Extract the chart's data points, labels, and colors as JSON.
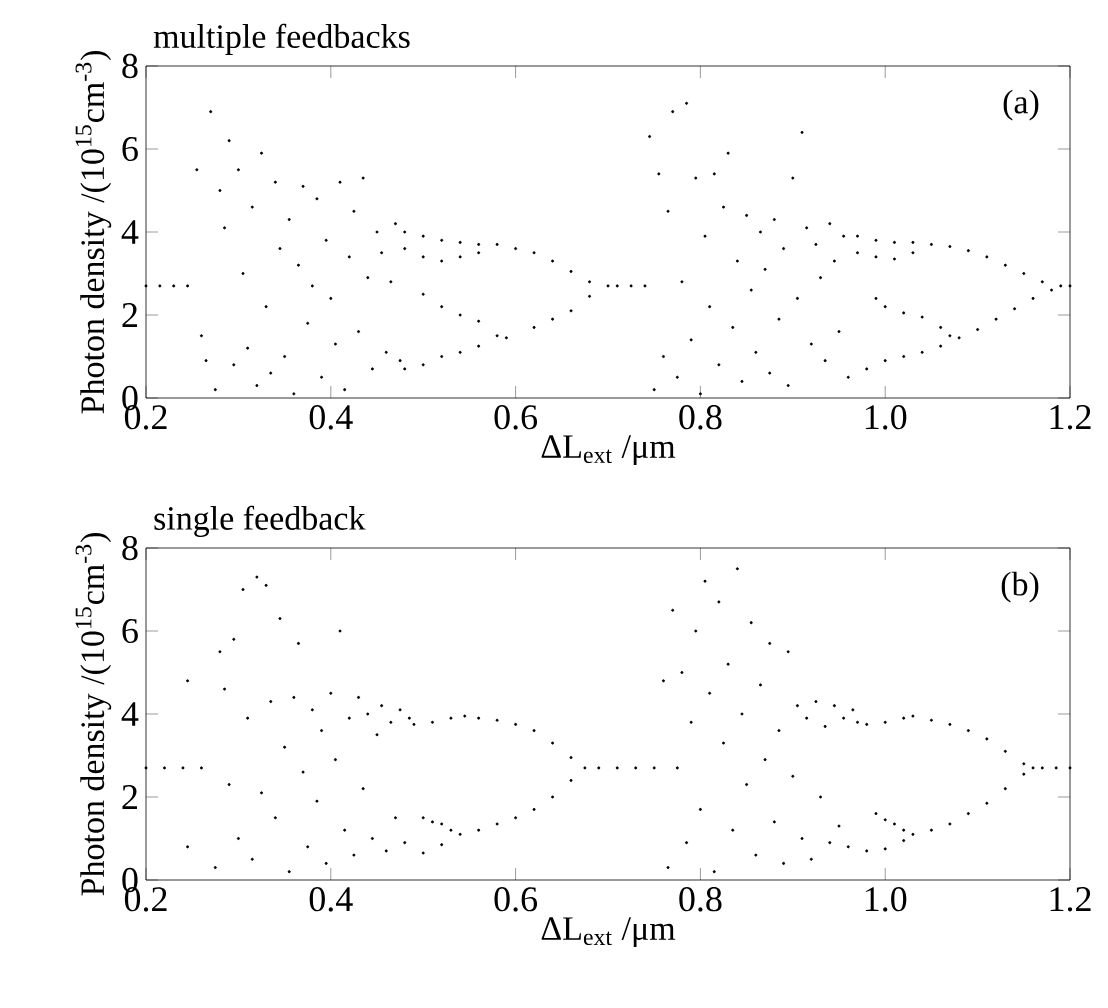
{
  "chart_data": [
    {
      "type": "scatter",
      "title": "multiple feedbacks",
      "annotations": [
        "(a)"
      ],
      "xlabel": "ΔL$_{ext}$ /μm",
      "ylabel": "Photon density /(10$^{15}$cm$^{-3}$)",
      "xlim": [
        0.2,
        1.2
      ],
      "ylim": [
        0,
        8
      ],
      "xticks": [
        0.2,
        0.4,
        0.6,
        0.8,
        {
          "value": 1,
          "label": "1.0"
        },
        1.2
      ],
      "yticks": [
        0,
        2,
        4,
        6,
        8
      ],
      "marker": "circle",
      "series": [
        {
          "color": "#000000",
          "x": [
            0.2,
            0.215,
            0.23,
            0.245,
            0.255,
            0.26,
            0.265,
            0.27,
            0.275,
            0.28,
            0.285,
            0.29,
            0.295,
            0.3,
            0.305,
            0.31,
            0.315,
            0.32,
            0.325,
            0.33,
            0.335,
            0.34,
            0.345,
            0.35,
            0.355,
            0.36,
            0.365,
            0.37,
            0.375,
            0.38,
            0.385,
            0.39,
            0.395,
            0.4,
            0.405,
            0.41,
            0.415,
            0.42,
            0.425,
            0.43,
            0.435,
            0.44,
            0.445,
            0.45,
            0.455,
            0.46,
            0.465,
            0.47,
            0.475,
            0.48,
            0.5,
            0.52,
            0.54,
            0.56,
            0.58,
            0.6,
            0.62,
            0.64,
            0.66,
            0.68,
            0.7,
            0.48,
            0.5,
            0.52,
            0.54,
            0.56,
            0.5,
            0.52,
            0.54,
            0.56,
            0.58,
            0.48,
            0.5,
            0.52,
            0.54,
            0.56,
            0.59,
            0.62,
            0.64,
            0.66,
            0.68,
            0.71,
            0.725,
            0.74,
            0.745,
            0.75,
            0.755,
            0.76,
            0.765,
            0.77,
            0.775,
            0.78,
            0.785,
            0.79,
            0.795,
            0.8,
            0.805,
            0.81,
            0.815,
            0.82,
            0.825,
            0.83,
            0.835,
            0.84,
            0.845,
            0.85,
            0.855,
            0.86,
            0.865,
            0.87,
            0.875,
            0.88,
            0.885,
            0.89,
            0.895,
            0.9,
            0.905,
            0.91,
            0.915,
            0.92,
            0.925,
            0.93,
            0.935,
            0.94,
            0.945,
            0.95,
            0.955,
            0.97,
            0.99,
            1.01,
            1.03,
            1.05,
            1.07,
            1.09,
            1.11,
            1.13,
            1.15,
            1.17,
            1.19,
            0.97,
            0.99,
            1.01,
            1.03,
            0.99,
            1.0,
            1.02,
            1.04,
            1.06,
            1.07,
            0.96,
            0.98,
            1.0,
            1.02,
            1.04,
            1.06,
            1.08,
            1.1,
            1.12,
            1.14,
            1.16,
            1.18,
            1.2
          ],
          "values": [
            2.7,
            2.7,
            2.7,
            2.7,
            5.5,
            1.5,
            0.9,
            6.9,
            0.2,
            5.0,
            4.1,
            6.2,
            0.8,
            5.5,
            3.0,
            1.2,
            4.6,
            0.3,
            5.9,
            2.2,
            0.6,
            5.2,
            3.6,
            1.0,
            4.3,
            0.1,
            3.2,
            5.1,
            1.8,
            2.7,
            4.8,
            0.5,
            3.8,
            2.4,
            1.3,
            5.2,
            0.2,
            3.4,
            4.5,
            1.6,
            5.3,
            2.9,
            0.7,
            4.0,
            3.5,
            1.1,
            2.8,
            4.2,
            0.9,
            4.0,
            3.9,
            3.8,
            3.75,
            3.7,
            3.7,
            3.6,
            3.5,
            3.3,
            3.05,
            2.8,
            2.7,
            3.6,
            3.4,
            3.3,
            3.4,
            3.5,
            2.5,
            2.2,
            2.0,
            1.85,
            1.5,
            0.7,
            0.8,
            1.0,
            1.1,
            1.25,
            1.45,
            1.7,
            1.9,
            2.1,
            2.45,
            2.7,
            2.7,
            2.7,
            6.3,
            0.2,
            5.4,
            1.0,
            4.5,
            6.9,
            0.5,
            2.8,
            7.1,
            1.4,
            5.3,
            0.1,
            3.9,
            2.2,
            5.4,
            0.8,
            4.6,
            5.9,
            1.7,
            3.3,
            0.4,
            4.4,
            2.6,
            1.1,
            4.0,
            3.1,
            0.6,
            4.3,
            1.9,
            3.6,
            0.3,
            5.3,
            2.4,
            6.4,
            4.1,
            1.3,
            3.7,
            2.9,
            0.9,
            4.2,
            3.3,
            1.6,
            3.9,
            3.9,
            3.8,
            3.75,
            3.75,
            3.7,
            3.65,
            3.55,
            3.4,
            3.2,
            3.0,
            2.8,
            2.7,
            3.5,
            3.4,
            3.35,
            3.5,
            2.4,
            2.2,
            2.05,
            1.95,
            1.7,
            1.5,
            0.5,
            0.7,
            0.9,
            1.0,
            1.1,
            1.25,
            1.45,
            1.65,
            1.9,
            2.15,
            2.4,
            2.6,
            2.7
          ]
        }
      ]
    },
    {
      "type": "scatter",
      "title": "single feedback",
      "annotations": [
        "(b)"
      ],
      "xlabel": "ΔL$_{ext}$ /μm",
      "ylabel": "Photon density /(10$^{15}$cm$^{-3}$)",
      "xlim": [
        0.2,
        1.2
      ],
      "ylim": [
        0,
        8
      ],
      "xticks": [
        0.2,
        0.4,
        0.6,
        0.8,
        {
          "value": 1,
          "label": "1.0"
        },
        1.2
      ],
      "yticks": [
        0,
        2,
        4,
        6,
        8
      ],
      "marker": "circle",
      "series": [
        {
          "color": "#000000",
          "x": [
            0.2,
            0.22,
            0.24,
            0.26,
            0.245,
            0.245,
            0.275,
            0.28,
            0.285,
            0.29,
            0.295,
            0.3,
            0.305,
            0.31,
            0.315,
            0.32,
            0.325,
            0.33,
            0.335,
            0.34,
            0.345,
            0.35,
            0.355,
            0.36,
            0.365,
            0.37,
            0.375,
            0.38,
            0.385,
            0.39,
            0.395,
            0.4,
            0.405,
            0.41,
            0.415,
            0.42,
            0.425,
            0.43,
            0.435,
            0.44,
            0.445,
            0.45,
            0.455,
            0.46,
            0.465,
            0.47,
            0.475,
            0.48,
            0.485,
            0.49,
            0.51,
            0.53,
            0.545,
            0.56,
            0.58,
            0.6,
            0.62,
            0.64,
            0.66,
            0.675,
            0.5,
            0.52,
            0.54,
            0.56,
            0.58,
            0.6,
            0.62,
            0.64,
            0.66,
            0.5,
            0.51,
            0.52,
            0.53,
            0.69,
            0.71,
            0.73,
            0.75,
            0.76,
            0.765,
            0.77,
            0.775,
            0.78,
            0.785,
            0.79,
            0.795,
            0.8,
            0.805,
            0.81,
            0.815,
            0.82,
            0.825,
            0.83,
            0.835,
            0.84,
            0.845,
            0.85,
            0.855,
            0.86,
            0.865,
            0.87,
            0.875,
            0.88,
            0.885,
            0.89,
            0.895,
            0.9,
            0.905,
            0.91,
            0.915,
            0.92,
            0.925,
            0.93,
            0.935,
            0.94,
            0.945,
            0.95,
            0.955,
            0.96,
            0.965,
            0.97,
            0.98,
            1.0,
            1.02,
            1.03,
            1.05,
            1.07,
            1.09,
            1.11,
            1.13,
            1.15,
            1.16,
            0.98,
            1.0,
            1.02,
            1.03,
            1.05,
            1.07,
            1.09,
            1.11,
            1.13,
            1.15,
            0.99,
            1.0,
            1.01,
            1.02,
            1.17,
            1.185,
            1.2
          ],
          "values": [
            2.7,
            2.7,
            2.7,
            2.7,
            4.8,
            0.8,
            0.3,
            5.5,
            4.6,
            2.3,
            5.8,
            1.0,
            7.0,
            3.9,
            0.5,
            7.3,
            2.1,
            7.1,
            4.3,
            1.5,
            6.3,
            3.2,
            0.2,
            4.4,
            5.7,
            2.6,
            0.8,
            4.1,
            1.9,
            3.6,
            0.4,
            4.5,
            2.9,
            6.0,
            1.2,
            3.9,
            0.6,
            4.4,
            2.2,
            4.0,
            1.0,
            3.5,
            4.2,
            0.7,
            3.8,
            1.5,
            4.1,
            0.9,
            3.9,
            3.75,
            3.8,
            3.9,
            3.95,
            3.9,
            3.85,
            3.75,
            3.6,
            3.3,
            2.95,
            2.7,
            0.65,
            0.85,
            1.1,
            1.2,
            1.35,
            1.5,
            1.7,
            2.0,
            2.4,
            1.5,
            1.4,
            1.35,
            1.2,
            2.7,
            2.7,
            2.7,
            2.7,
            4.8,
            0.3,
            6.5,
            2.7,
            5.0,
            0.9,
            3.8,
            6.0,
            1.7,
            7.2,
            4.5,
            0.2,
            6.7,
            3.3,
            5.2,
            1.2,
            7.5,
            4.0,
            2.3,
            6.2,
            0.6,
            4.7,
            2.9,
            5.7,
            1.4,
            3.6,
            0.4,
            5.5,
            2.5,
            4.2,
            1.0,
            3.9,
            0.5,
            4.3,
            2.0,
            3.7,
            0.9,
            4.2,
            1.3,
            3.9,
            0.8,
            4.1,
            3.8,
            3.75,
            3.8,
            3.9,
            3.95,
            3.85,
            3.75,
            3.6,
            3.4,
            3.1,
            2.8,
            2.7,
            0.7,
            0.75,
            0.95,
            1.1,
            1.2,
            1.35,
            1.6,
            1.85,
            2.2,
            2.55,
            1.6,
            1.45,
            1.35,
            1.2,
            2.7,
            2.7,
            2.7
          ]
        }
      ]
    }
  ]
}
